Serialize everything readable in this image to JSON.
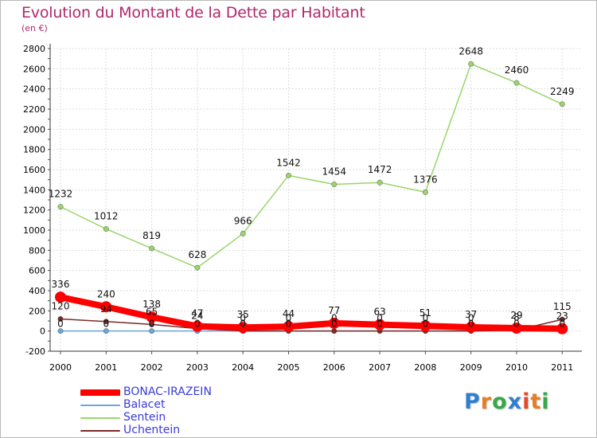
{
  "title": "Evolution du Montant de la Dette par Habitant",
  "subtitle": "(en €)",
  "logo": {
    "text": "Proxiti",
    "colors": [
      "#2f7fd0",
      "#e67e22",
      "#3aa84a",
      "#2f7fd0",
      "#e24b2c",
      "#e67e22",
      "#3aa84a"
    ]
  },
  "chart_data": {
    "type": "line",
    "categories": [
      "2000",
      "2001",
      "2002",
      "2003",
      "2004",
      "2005",
      "2006",
      "2007",
      "2008",
      "2009",
      "2010",
      "2011"
    ],
    "ylim": [
      -200,
      2800
    ],
    "yticks": [
      -200,
      0,
      200,
      400,
      600,
      800,
      1000,
      1200,
      1400,
      1600,
      1800,
      2000,
      2200,
      2400,
      2600,
      2800
    ],
    "grid": true,
    "legend_position": "bottom-left",
    "series": [
      {
        "name": "BONAC-IRAZEIN",
        "values": [
          336,
          240,
          138,
          47,
          35,
          44,
          77,
          63,
          51,
          37,
          29,
          23
        ],
        "color": "#ff0000",
        "labels": [
          "336",
          "240",
          "138",
          "47",
          "35",
          "44",
          "77",
          "63",
          "51",
          "37",
          "29",
          "23"
        ]
      },
      {
        "name": "Balacet",
        "values": [
          0,
          0,
          0,
          0,
          0,
          0,
          0,
          0,
          0,
          0,
          0,
          0
        ],
        "color": "#6aa6d8",
        "labels": [
          "0",
          "0",
          "0",
          "0",
          "0",
          "0",
          "0",
          "0",
          "0",
          "0",
          "0",
          "0"
        ]
      },
      {
        "name": "Sentein",
        "values": [
          1232,
          1012,
          819,
          628,
          966,
          1542,
          1454,
          1472,
          1376,
          2648,
          2460,
          2249
        ],
        "color": "#9ad46a",
        "labels": [
          "1232",
          "1012",
          "819",
          "628",
          "966",
          "1542",
          "1454",
          "1472",
          "1376",
          "2648",
          "2460",
          "2249"
        ]
      },
      {
        "name": "Uchentein",
        "values": [
          120,
          94,
          65,
          24,
          0,
          0,
          0,
          0,
          0,
          0,
          8,
          115
        ],
        "color": "#7a2a2a",
        "labels": [
          "120",
          "94",
          "65",
          "24",
          "0",
          "0",
          "0",
          "0",
          "0",
          "0",
          "8",
          "115"
        ]
      }
    ]
  }
}
